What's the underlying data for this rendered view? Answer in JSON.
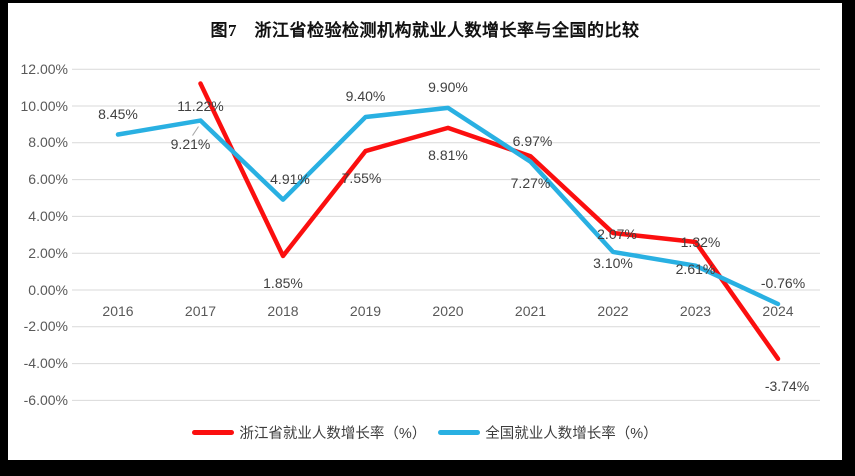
{
  "chart_data": {
    "type": "line",
    "title": "图7　浙江省检验检测机构就业人数增长率与全国的比较",
    "categories": [
      "2016",
      "2017",
      "2018",
      "2019",
      "2020",
      "2021",
      "2022",
      "2023",
      "2024"
    ],
    "y_axis": {
      "ticks": [
        "12.00%",
        "10.00%",
        "8.00%",
        "6.00%",
        "4.00%",
        "2.00%",
        "0.00%",
        "-2.00%",
        "-4.00%",
        "-6.00%"
      ],
      "values": [
        12,
        10,
        8,
        6,
        4,
        2,
        0,
        -2,
        -4,
        -6
      ],
      "min": -6,
      "max": 12
    },
    "grid": true,
    "legend_position": "bottom",
    "colors": {
      "gridline": "#d9d9d9",
      "axis_text": "#595959",
      "data_label_text": "#404040",
      "leader_line": "#a6a6a6"
    },
    "series": [
      {
        "name": "浙江省就业人数增长率（%）",
        "color": "#fb0f0f",
        "label_side": "below",
        "points": [
          {
            "year": "2017",
            "value": 11.22,
            "label": "11.22%",
            "dy": 22
          },
          {
            "year": "2018",
            "value": 1.85,
            "label": "1.85%"
          },
          {
            "year": "2019",
            "value": 7.55,
            "label": "7.55%",
            "dx": -4
          },
          {
            "year": "2020",
            "value": 8.81,
            "label": "8.81%"
          },
          {
            "year": "2021",
            "value": 7.27,
            "label": "7.27%"
          },
          {
            "year": "2022",
            "value": 3.1,
            "label": "3.10%",
            "dy": 30
          },
          {
            "year": "2023",
            "value": 2.61,
            "label": "2.61%"
          },
          {
            "year": "2024",
            "value": -3.74,
            "label": "-3.74%",
            "dx": 9
          }
        ]
      },
      {
        "name": "全国就业人数增长率（%）",
        "color": "#29b0e2",
        "label_side": "above",
        "points": [
          {
            "year": "2016",
            "value": 8.45,
            "label": "8.45%"
          },
          {
            "year": "2017",
            "value": 9.21,
            "label": "9.21%",
            "dy": 23,
            "dx": -10,
            "leader": true
          },
          {
            "year": "2018",
            "value": 4.91,
            "label": "4.91%",
            "dx": 7
          },
          {
            "year": "2019",
            "value": 9.4,
            "label": "9.40%"
          },
          {
            "year": "2020",
            "value": 9.9,
            "label": "9.90%"
          },
          {
            "year": "2021",
            "value": 6.97,
            "label": "6.97%",
            "dx": 2
          },
          {
            "year": "2022",
            "value": 2.07,
            "label": "2.07%",
            "dy": -18,
            "dx": 4
          },
          {
            "year": "2023",
            "value": 1.32,
            "label": "1.32%",
            "dy": -24,
            "dx": 5
          },
          {
            "year": "2024",
            "value": -0.76,
            "label": "-0.76%",
            "dx": 5
          }
        ]
      }
    ]
  }
}
